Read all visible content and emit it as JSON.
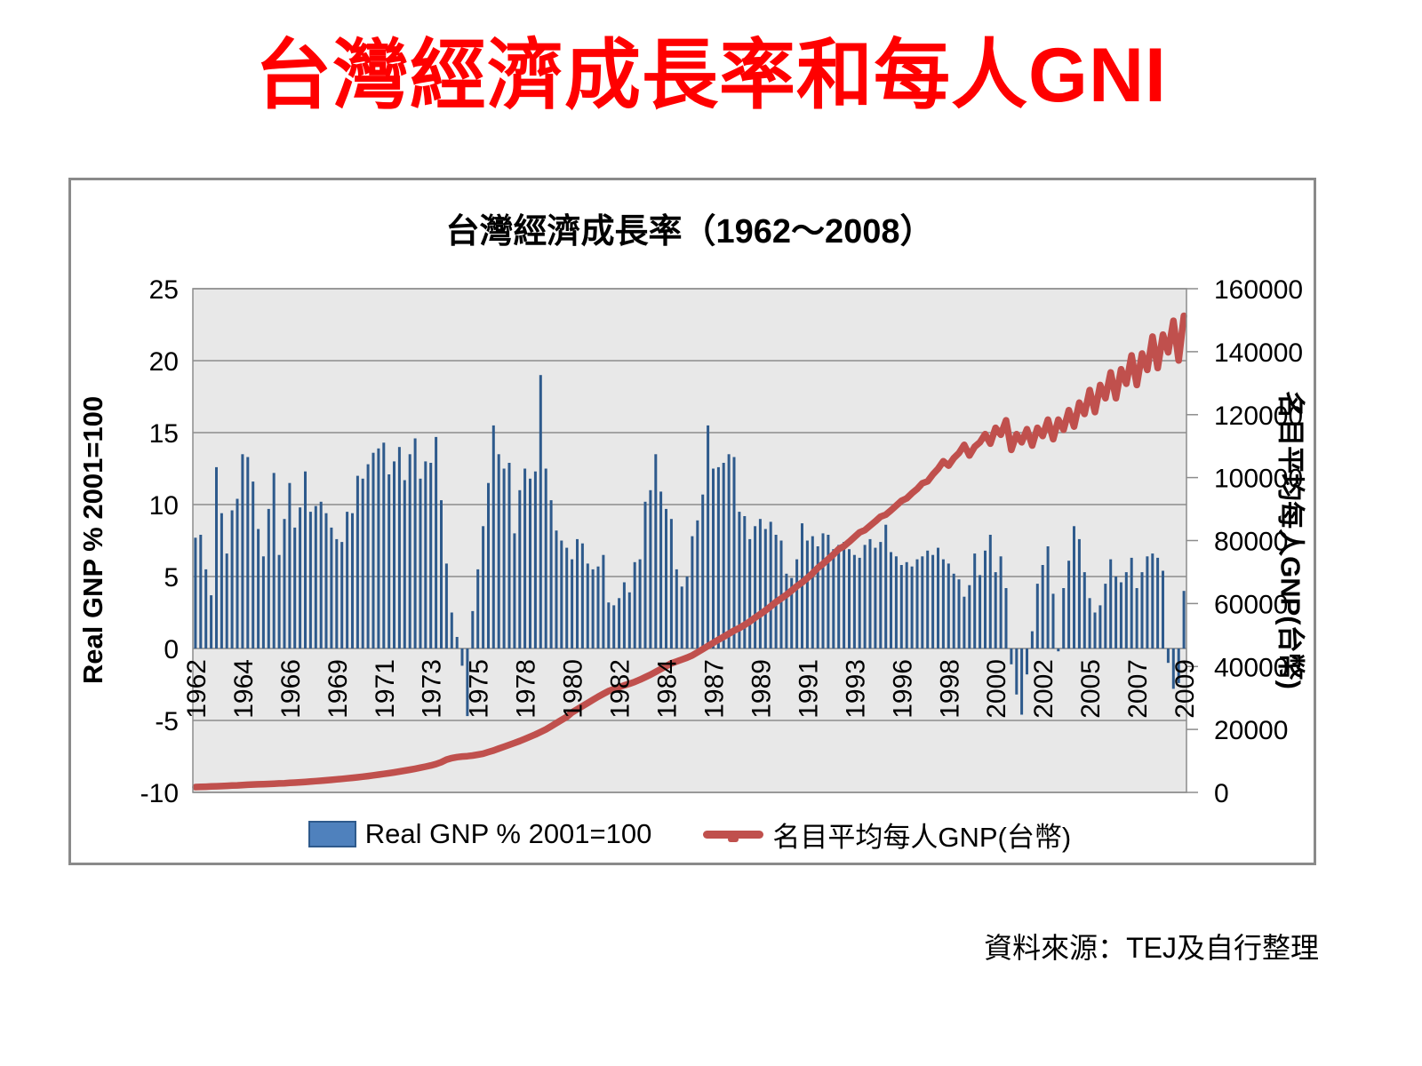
{
  "page": {
    "title": "台灣經濟成長率和每人GNI",
    "source_note": "資料來源：TEJ及自行整理"
  },
  "chart": {
    "title": "台灣經濟成長率（1962～2008）",
    "left_axis": {
      "title": "Real GNP % 2001=100",
      "min": -10,
      "max": 25,
      "step": 5,
      "ticks": [
        25,
        20,
        15,
        10,
        5,
        0,
        -5,
        -10
      ]
    },
    "right_axis": {
      "title": "名目平均每人GNP(台幣)",
      "min": 0,
      "max": 160000,
      "step": 20000,
      "ticks": [
        160000,
        140000,
        120000,
        100000,
        80000,
        60000,
        40000,
        20000,
        0
      ]
    },
    "x_axis": {
      "tick_labels": [
        "1962",
        "1964",
        "1966",
        "1969",
        "1971",
        "1973",
        "1975",
        "1978",
        "1980",
        "1982",
        "1984",
        "1987",
        "1989",
        "1991",
        "1993",
        "1996",
        "1998",
        "2000",
        "2002",
        "2005",
        "2007",
        "2009"
      ],
      "tick_every_n_quarters": 9
    },
    "legend": [
      {
        "label": "Real GNP % 2001=100",
        "type": "bar",
        "color": "#4F81BD"
      },
      {
        "label": "名目平均每人GNP(台幣)",
        "type": "line",
        "color": "#C0504D"
      }
    ],
    "colors": {
      "bar": "#2E5A8C",
      "bar_legend": "#4F81BD",
      "line": "#C0504D",
      "plot_bg": "#E8E8E8",
      "grid": "#8C8C8C",
      "title": "#FF0000",
      "frame": "#8A8A8A"
    }
  },
  "chart_data": {
    "type": "bar",
    "subtype": "combo-bar-line",
    "frequency": "quarterly",
    "x_start": "1962Q1",
    "x_end": "2009Q2",
    "title": "台灣經濟成長率（1962～2008）",
    "xlabel": "",
    "ylabel_left": "Real GNP % 2001=100",
    "ylabel_right": "名目平均每人GNP(台幣)",
    "ylim_left": [
      -10,
      25
    ],
    "ylim_right": [
      0,
      160000
    ],
    "grid": true,
    "legend_position": "bottom",
    "series": [
      {
        "name": "Real GNP % 2001=100",
        "type": "bar",
        "axis": "left",
        "unit": "%",
        "values": [
          7.7,
          7.9,
          5.5,
          3.7,
          12.6,
          9.4,
          6.6,
          9.6,
          10.4,
          13.5,
          13.3,
          11.6,
          8.3,
          6.4,
          9.7,
          12.2,
          6.5,
          9.0,
          11.5,
          8.4,
          9.8,
          12.3,
          9.5,
          9.9,
          10.2,
          9.4,
          8.4,
          7.6,
          7.4,
          9.5,
          9.4,
          12.0,
          11.8,
          12.8,
          13.6,
          13.9,
          14.3,
          12.1,
          13.0,
          14.0,
          11.7,
          13.5,
          14.6,
          11.8,
          13.0,
          12.9,
          14.7,
          10.3,
          5.9,
          2.5,
          0.8,
          -1.2,
          -4.7,
          2.6,
          5.5,
          8.5,
          11.5,
          15.5,
          13.5,
          12.5,
          12.9,
          8.0,
          11.0,
          12.5,
          11.8,
          12.3,
          19.0,
          12.5,
          10.3,
          8.2,
          7.5,
          7.0,
          6.2,
          7.6,
          7.3,
          5.9,
          5.5,
          5.7,
          6.5,
          3.2,
          3.0,
          3.5,
          4.6,
          3.9,
          6.0,
          6.2,
          10.2,
          11.0,
          13.5,
          10.9,
          9.7,
          9.0,
          5.5,
          4.3,
          5.0,
          7.8,
          8.9,
          10.7,
          15.5,
          12.5,
          12.6,
          12.9,
          13.5,
          13.3,
          9.5,
          9.2,
          7.6,
          8.5,
          9.0,
          8.3,
          8.8,
          7.9,
          7.5,
          5.2,
          4.9,
          6.2,
          8.7,
          7.5,
          7.8,
          7.1,
          8.0,
          7.9,
          6.9,
          7.2,
          7.4,
          6.9,
          6.5,
          6.3,
          7.2,
          7.6,
          7.0,
          7.4,
          8.6,
          6.7,
          6.4,
          5.8,
          6.0,
          5.7,
          6.2,
          6.4,
          6.8,
          6.5,
          7.0,
          6.2,
          5.9,
          5.2,
          4.8,
          3.6,
          4.4,
          6.6,
          5.1,
          6.8,
          7.9,
          5.3,
          6.4,
          4.2,
          -1.1,
          -3.2,
          -4.6,
          -1.8,
          1.2,
          4.5,
          5.8,
          7.1,
          3.8,
          -0.2,
          4.2,
          6.1,
          8.5,
          7.6,
          5.3,
          3.5,
          2.5,
          3.0,
          4.5,
          6.2,
          5.0,
          4.6,
          5.3,
          6.3,
          4.2,
          5.3,
          6.4,
          6.6,
          6.3,
          5.4,
          -1.0,
          -2.8,
          -2.4,
          4.0
        ]
      },
      {
        "name": "名目平均每人GNP(台幣)",
        "type": "line",
        "axis": "right",
        "unit": "NTD",
        "values": [
          1700,
          1750,
          1800,
          1900,
          1950,
          2000,
          2080,
          2160,
          2240,
          2330,
          2420,
          2510,
          2560,
          2620,
          2690,
          2760,
          2840,
          2920,
          3010,
          3110,
          3210,
          3320,
          3440,
          3570,
          3700,
          3840,
          3990,
          4150,
          4300,
          4460,
          4630,
          4810,
          5000,
          5200,
          5410,
          5630,
          5860,
          6100,
          6350,
          6620,
          6900,
          7200,
          7510,
          7840,
          8180,
          8550,
          9000,
          9600,
          10400,
          10900,
          11200,
          11400,
          11500,
          11700,
          12000,
          12300,
          12800,
          13300,
          13900,
          14500,
          15100,
          15700,
          16300,
          17000,
          17700,
          18400,
          19200,
          20000,
          21000,
          22000,
          23000,
          24000,
          25400,
          26400,
          27400,
          28400,
          29400,
          30400,
          31300,
          32200,
          32800,
          33400,
          34000,
          34500,
          35100,
          35800,
          36600,
          37400,
          38300,
          39200,
          40100,
          41000,
          41600,
          42200,
          42800,
          43500,
          44500,
          45500,
          46500,
          47500,
          48500,
          49400,
          50400,
          51400,
          52200,
          53200,
          54300,
          55500,
          56600,
          57800,
          59100,
          60500,
          61600,
          62800,
          64100,
          65500,
          66700,
          68100,
          69600,
          71300,
          72600,
          74100,
          75600,
          77300,
          78200,
          79600,
          81100,
          82600,
          83300,
          84700,
          86100,
          87600,
          88200,
          89600,
          91100,
          92600,
          93400,
          95000,
          96400,
          98200,
          98800,
          101000,
          102800,
          105200,
          103800,
          106200,
          107800,
          110400,
          107000,
          109800,
          111200,
          113800,
          110800,
          115800,
          113600,
          118200,
          108800,
          113800,
          111200,
          115400,
          110200,
          115800,
          113200,
          118400,
          112200,
          118400,
          115200,
          121400,
          116200,
          123800,
          120200,
          127800,
          120800,
          129400,
          125200,
          133400,
          125200,
          134400,
          129800,
          138800,
          129400,
          139400,
          134200,
          144800,
          134800,
          145400,
          139800,
          149800,
          137200,
          151400
        ]
      }
    ]
  }
}
